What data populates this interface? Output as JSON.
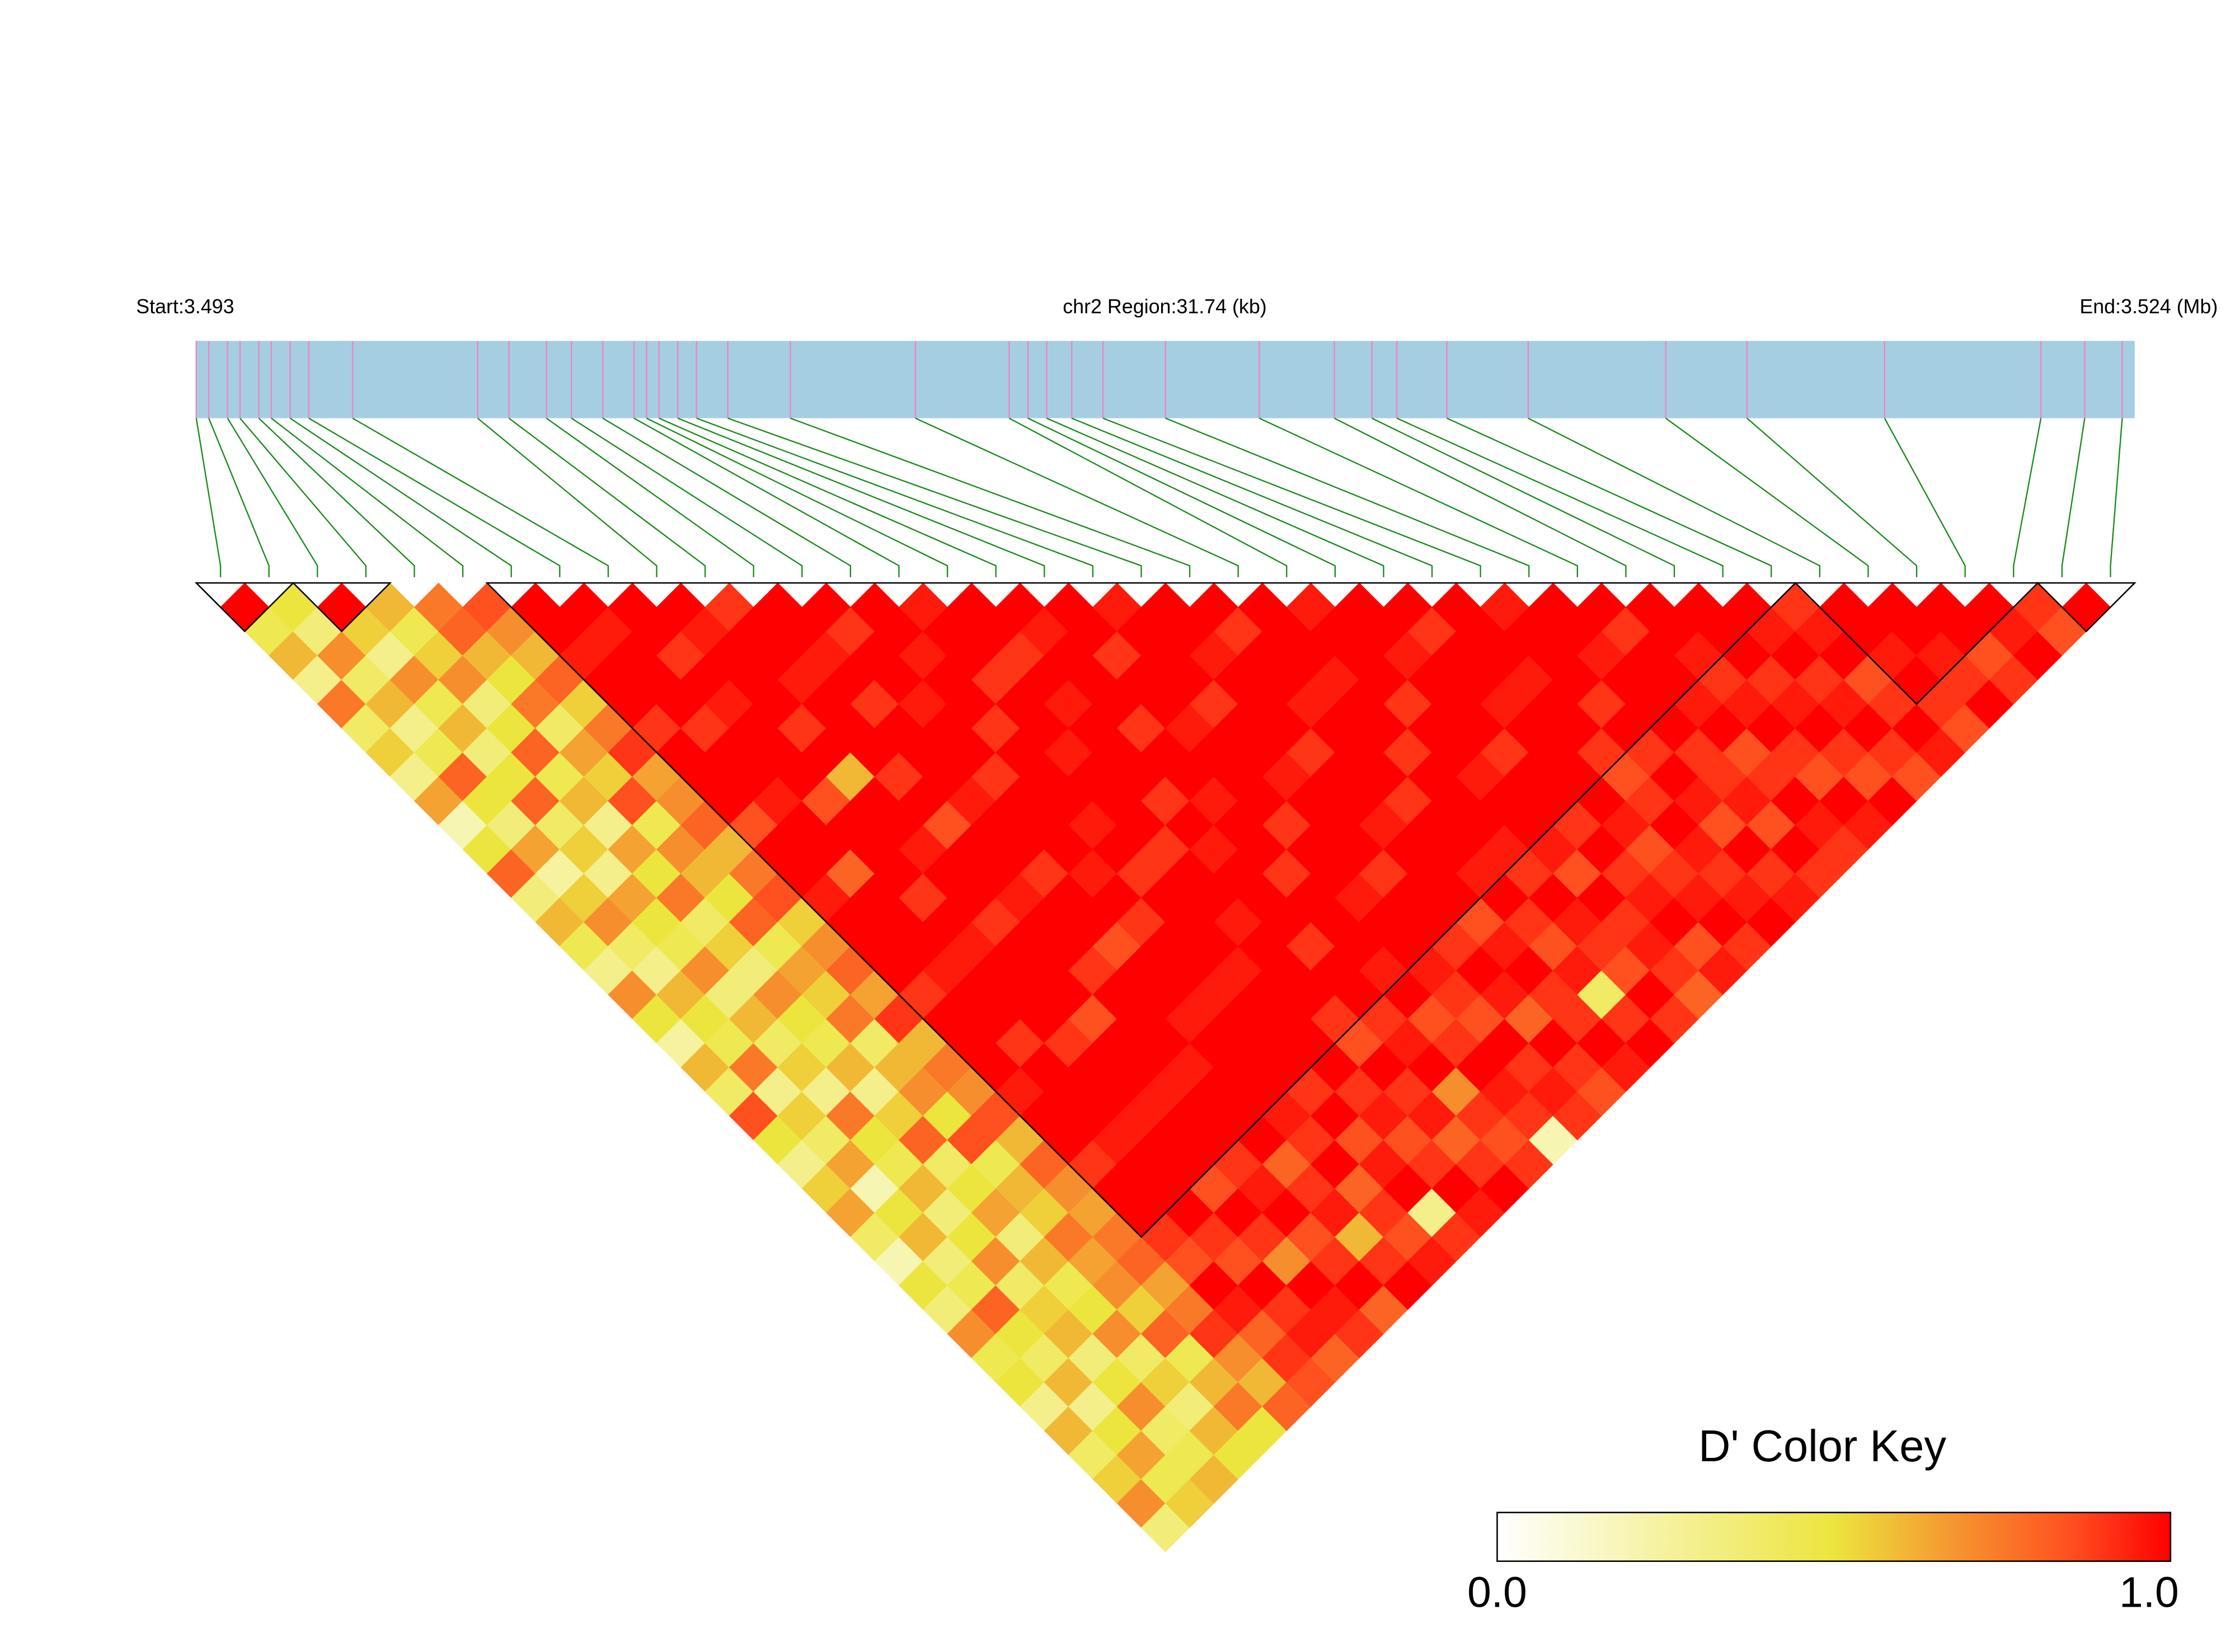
{
  "chart_data": {
    "type": "ld_heatmap",
    "start_label": "Start:3.493",
    "region_label": "chr2 Region:31.74 (kb)",
    "end_label": "End:3.524 (Mb)",
    "xlim": [
      3.493,
      3.524
    ],
    "positions": [
      3.493,
      3.4932,
      3.4935,
      3.4937,
      3.494,
      3.4942,
      3.4945,
      3.4948,
      3.4955,
      3.4975,
      3.498,
      3.4986,
      3.499,
      3.4995,
      3.5,
      3.5002,
      3.5004,
      3.5007,
      3.501,
      3.5015,
      3.5025,
      3.5045,
      3.506,
      3.5063,
      3.5066,
      3.507,
      3.5075,
      3.5085,
      3.51,
      3.5112,
      3.5118,
      3.5122,
      3.513,
      3.5143,
      3.5165,
      3.5178,
      3.52,
      3.5225,
      3.5232,
      3.5238
    ],
    "ld": [
      [
        1.0,
        0.45,
        0.6,
        0.3,
        0.75,
        0.4,
        0.55,
        0.3,
        0.65,
        0.2,
        0.5,
        0.8,
        0.35,
        0.6,
        0.45,
        0.3,
        0.7,
        0.5,
        0.25,
        0.6,
        0.4,
        0.85,
        0.5,
        0.3,
        0.55,
        0.65,
        0.4,
        0.2,
        0.5,
        0.35,
        0.7,
        0.45,
        0.5,
        0.3,
        0.6,
        0.4,
        0.55,
        0.7,
        0.35
      ],
      [
        0.5,
        0.35,
        0.7,
        0.4,
        0.6,
        0.3,
        0.45,
        0.8,
        0.5,
        0.35,
        0.65,
        0.25,
        0.55,
        0.7,
        0.4,
        0.3,
        0.6,
        0.5,
        0.45,
        0.75,
        0.3,
        0.55,
        0.4,
        0.65,
        0.2,
        0.5,
        0.6,
        0.35,
        0.45,
        0.8,
        0.5,
        0.4,
        0.6,
        0.3,
        0.5,
        0.65,
        0.45,
        0.55
      ],
      [
        1.0,
        0.55,
        0.3,
        0.7,
        0.45,
        0.6,
        0.35,
        0.5,
        0.8,
        0.4,
        0.55,
        0.3,
        0.65,
        0.5,
        0.45,
        0.7,
        0.35,
        0.6,
        0.4,
        0.55,
        0.3,
        0.75,
        0.5,
        0.45,
        0.6,
        0.35,
        0.5,
        0.7,
        0.4,
        0.55,
        0.6,
        0.35,
        0.5,
        0.7,
        0.4,
        0.45,
        0.6
      ],
      [
        0.6,
        0.45,
        0.55,
        0.7,
        0.35,
        0.5,
        0.8,
        0.45,
        0.6,
        0.3,
        0.65,
        0.5,
        0.75,
        0.4,
        0.55,
        0.35,
        0.7,
        0.5,
        0.45,
        0.6,
        0.3,
        0.55,
        0.8,
        0.4,
        0.5,
        0.65,
        0.35,
        0.6,
        0.45,
        0.5,
        0.7,
        0.4,
        0.55,
        0.35,
        0.6,
        0.5
      ],
      [
        0.75,
        0.8,
        0.6,
        0.5,
        0.75,
        0.4,
        0.65,
        0.55,
        0.85,
        0.45,
        0.7,
        0.6,
        0.5,
        0.8,
        0.45,
        0.65,
        0.55,
        0.75,
        0.4,
        0.6,
        0.7,
        0.5,
        0.85,
        0.45,
        0.6,
        0.55,
        0.75,
        0.65,
        0.7,
        0.55,
        0.8,
        0.45,
        0.6,
        0.75,
        0.5
      ],
      [
        0.85,
        0.7,
        0.6,
        0.8,
        0.55,
        0.75,
        0.9,
        0.65,
        0.7,
        0.8,
        0.6,
        0.75,
        0.85,
        0.55,
        0.7,
        0.8,
        0.65,
        0.9,
        0.6,
        0.75,
        0.7,
        0.85,
        0.6,
        0.8,
        0.7,
        0.65,
        0.75,
        0.8,
        0.65,
        0.75,
        0.9,
        0.7,
        0.6,
        0.8
      ],
      [
        1,
        1,
        0.95,
        1,
        1,
        0.9,
        1,
        1,
        1,
        0.85,
        1,
        1,
        0.95,
        1,
        1,
        1,
        0.9,
        1,
        1,
        1,
        0.95,
        1,
        1,
        0.9,
        1,
        1,
        0.9,
        0.85,
        1,
        0.95,
        0.8,
        0.9,
        0.85
      ],
      [
        1,
        0.95,
        1,
        1,
        1,
        0.9,
        1,
        1,
        0.95,
        1,
        1,
        0.8,
        1,
        1,
        1,
        0.95,
        1,
        1,
        0.9,
        1,
        1,
        1,
        0.95,
        1,
        1,
        1,
        0.9,
        0.85,
        1,
        0.9,
        0.95,
        0.8
      ],
      [
        1,
        1,
        0.9,
        1,
        0.95,
        1,
        1,
        1,
        0.85,
        1,
        1,
        1,
        0.9,
        1,
        0.95,
        1,
        1,
        1,
        0.9,
        1,
        1,
        0.95,
        1,
        1,
        0.85,
        1,
        0.9,
        0.7,
        1,
        0.95,
        0.9
      ],
      [
        1,
        0.95,
        1,
        1,
        1,
        0.9,
        1,
        0.6,
        1,
        1,
        0.95,
        1,
        1,
        0.9,
        1,
        1,
        1,
        0.85,
        1,
        1,
        0.95,
        1,
        1,
        0.9,
        0.95,
        1,
        0.85,
        0.9,
        1,
        0.8
      ],
      [
        0.9,
        1,
        1,
        0.95,
        1,
        1,
        1,
        0.9,
        1,
        0.85,
        1,
        1,
        0.95,
        1,
        1,
        0.9,
        1,
        1,
        1,
        0.95,
        1,
        1,
        1,
        0.8,
        0.9,
        0.95,
        0.6,
        0.9,
        1
      ],
      [
        1,
        1,
        0.95,
        1,
        0.9,
        1,
        1,
        1,
        0.95,
        1,
        1,
        0.9,
        1,
        1,
        0.85,
        1,
        1,
        0.95,
        1,
        1,
        1,
        0.95,
        0.9,
        1,
        0.8,
        0.9,
        0.85,
        0.95
      ],
      [
        1,
        0.9,
        1,
        1,
        0.95,
        1,
        1,
        0.9,
        1,
        1,
        1,
        0.95,
        1,
        0.9,
        1,
        1,
        0.95,
        1,
        1,
        1,
        0.9,
        1,
        0.85,
        0.95,
        1,
        0.3,
        0.9
      ],
      [
        1,
        1,
        0.95,
        1,
        1,
        0.9,
        1,
        1,
        1,
        0.95,
        1,
        0.9,
        1,
        1,
        1,
        0.95,
        1,
        1,
        1,
        1,
        0.9,
        0.95,
        0.85,
        0.9,
        1,
        0.95
      ],
      [
        0.95,
        1,
        1,
        0.9,
        1,
        1,
        0.95,
        1,
        1,
        1,
        0.9,
        1,
        1,
        0.95,
        1,
        1,
        1,
        0.9,
        0.85,
        1,
        0.9,
        0.95,
        0.8,
        0.9,
        1
      ],
      [
        1,
        1,
        0.9,
        1,
        0.95,
        1,
        1,
        1,
        0.9,
        1,
        0.95,
        1,
        1,
        1,
        0.9,
        1,
        1,
        0.9,
        0.95,
        1,
        0.7,
        0.9,
        0.85,
        0.9
      ],
      [
        1,
        0.95,
        1,
        1,
        1,
        0.9,
        1,
        1,
        0.95,
        1,
        1,
        0.9,
        1,
        1,
        1,
        0.95,
        1,
        0.85,
        0.9,
        1,
        0.95,
        0.9,
        0.2
      ],
      [
        1,
        1,
        0.9,
        1,
        1,
        0.95,
        1,
        1,
        1,
        0.9,
        1,
        1,
        0.95,
        1,
        1,
        0.95,
        0.9,
        0.85,
        1,
        0.9,
        0.95,
        0.9
      ],
      [
        0.95,
        1,
        1,
        1,
        0.9,
        1,
        1,
        0.95,
        1,
        1,
        1,
        0.9,
        1,
        1,
        0.9,
        1,
        0.95,
        0.8,
        1,
        0.9,
        0.85
      ],
      [
        1,
        1,
        0.95,
        1,
        1,
        1,
        0.9,
        1,
        1,
        0.95,
        1,
        1,
        1,
        0.85,
        0.95,
        1,
        0.9,
        0.9,
        1,
        0.95
      ],
      [
        1,
        0.9,
        1,
        1,
        0.95,
        1,
        1,
        1,
        0.9,
        1,
        1,
        0.95,
        1,
        0.9,
        0.85,
        0.95,
        0.4,
        0.9,
        1
      ],
      [
        1,
        1,
        1,
        0.95,
        1,
        1,
        0.9,
        1,
        1,
        1,
        0.95,
        0.9,
        1,
        0.95,
        0.9,
        0.85,
        1,
        0.9
      ],
      [
        0.95,
        1,
        1,
        1,
        0.9,
        1,
        1,
        0.95,
        1,
        1,
        0.95,
        0.85,
        1,
        0.9,
        0.95,
        0.9,
        0.8
      ],
      [
        1,
        1,
        0.95,
        1,
        1,
        1,
        0.9,
        1,
        1,
        0.9,
        1,
        0.9,
        0.95,
        1,
        0.85,
        0.95
      ],
      [
        1,
        0.9,
        1,
        1,
        0.95,
        1,
        1,
        1,
        1,
        0.95,
        0.85,
        0.9,
        0.95,
        1,
        0.9
      ],
      [
        1,
        1,
        1,
        0.95,
        1,
        1,
        0.9,
        0.85,
        0.9,
        1,
        0.95,
        0.9,
        0.95,
        1
      ],
      [
        0.95,
        1,
        1,
        1,
        0.9,
        1,
        0.9,
        1,
        0.95,
        0.85,
        1,
        0.9,
        0.95
      ],
      [
        1,
        1,
        0.95,
        1,
        1,
        1,
        0.9,
        0.9,
        0.95,
        0.85,
        1,
        0.9
      ],
      [
        1,
        0.9,
        1,
        1,
        0.95,
        1,
        0.85,
        0.9,
        1,
        0.95,
        0.9
      ],
      [
        1,
        1,
        0.95,
        0.9,
        0.95,
        1,
        0.9,
        0.85,
        1,
        0.95
      ],
      [
        1,
        1,
        1,
        0.9,
        0.95,
        1,
        0.9,
        0.85,
        1
      ],
      [
        1,
        0.95,
        1,
        0.9,
        0.95,
        1,
        0.9,
        0.85
      ],
      [
        0.9,
        0.95,
        1,
        0.85,
        0.9,
        1,
        0.95
      ],
      [
        1,
        1,
        0.95,
        1,
        0.9,
        0.85
      ],
      [
        1,
        1,
        0.95,
        0.9,
        1
      ],
      [
        1,
        1,
        0.85,
        0.9
      ],
      [
        1,
        0.95,
        1
      ],
      [
        0.9,
        0.85
      ],
      [
        1
      ]
    ],
    "blocks": [
      [
        0,
        1
      ],
      [
        2,
        3
      ],
      [
        6,
        32
      ],
      [
        33,
        37
      ],
      [
        38,
        39
      ]
    ],
    "track_color": "#a6cee3",
    "snp_tick_color": "#e78ac3",
    "link_color": "#168a16",
    "block_outline_color": "#000000",
    "color_stops": [
      {
        "value": 0,
        "color": "#ffffff"
      },
      {
        "value": 0.5,
        "color": "#ece53e"
      },
      {
        "value": 0.65,
        "color": "#f4a232"
      },
      {
        "value": 0.85,
        "color": "#ff5020"
      },
      {
        "value": 1,
        "color": "#ff0000"
      }
    ],
    "color_key": {
      "title": "D' Color Key",
      "ticks": [
        {
          "value": 0,
          "label": "0.0"
        },
        {
          "value": 1,
          "label": "1.0"
        }
      ]
    }
  }
}
